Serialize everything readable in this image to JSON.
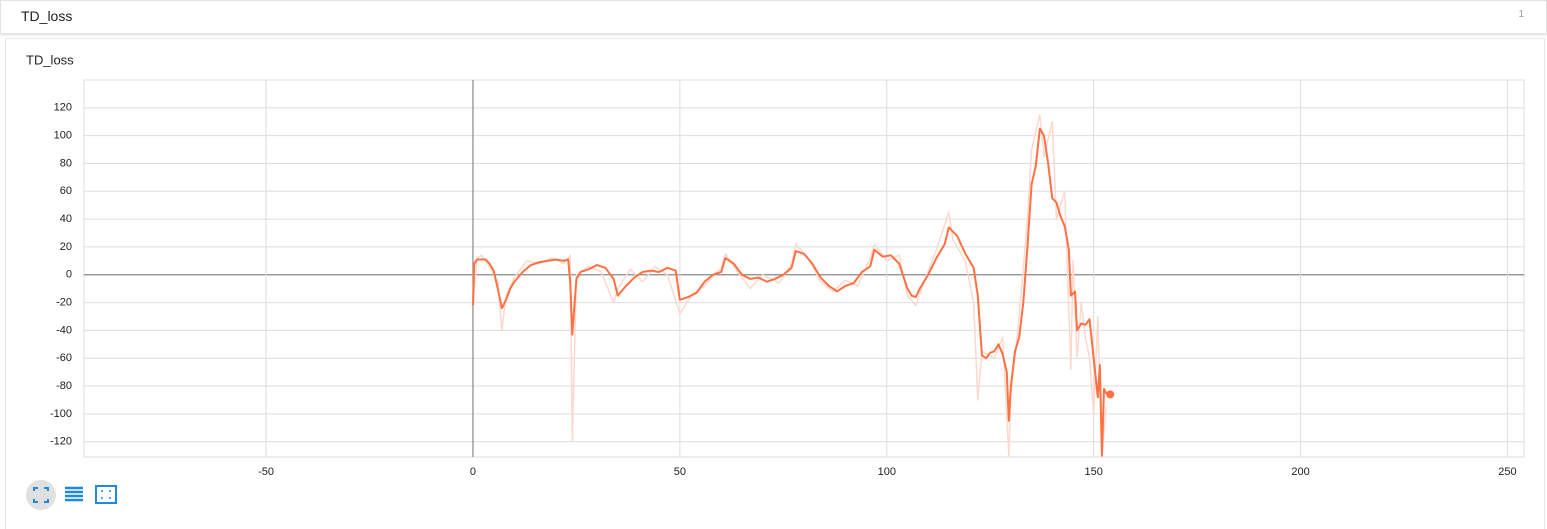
{
  "header": {
    "title": "TD_loss",
    "count": "1"
  },
  "chart_data": {
    "type": "line",
    "title": "TD_loss",
    "xlim": [
      -94,
      254
    ],
    "ylim": [
      -131,
      140
    ],
    "xticks": [
      -50,
      0,
      50,
      100,
      150,
      200,
      250
    ],
    "yticks": [
      -120,
      -100,
      -80,
      -60,
      -40,
      -20,
      0,
      20,
      40,
      60,
      80,
      100,
      120
    ],
    "grid": true,
    "series": [
      {
        "color": "#fcd9ce",
        "x": [
          0,
          1,
          2,
          4,
          6,
          7,
          8,
          10,
          13,
          16,
          19,
          22,
          23.5,
          24,
          25,
          28,
          31,
          34,
          35,
          38,
          41,
          44,
          47,
          50,
          53,
          56,
          60,
          61,
          64,
          67,
          70,
          74,
          77,
          78,
          81,
          84,
          87,
          90,
          93,
          96,
          97,
          100,
          103,
          105,
          107,
          109,
          112,
          115,
          116,
          119,
          121,
          122,
          123,
          126,
          128,
          129.5,
          130,
          132,
          134,
          135,
          137,
          138,
          140,
          141,
          143,
          144.5,
          145,
          146,
          147,
          148,
          149,
          150,
          151,
          152,
          153
        ],
        "values": [
          -22,
          12,
          14,
          6,
          -5,
          -40,
          -15,
          -2,
          10,
          8,
          12,
          8,
          14,
          -120,
          0,
          6,
          2,
          -20,
          -10,
          4,
          -5,
          6,
          0,
          -28,
          -14,
          -8,
          5,
          15,
          2,
          -10,
          0,
          -6,
          8,
          22,
          12,
          -5,
          -12,
          -4,
          -8,
          12,
          22,
          10,
          14,
          -15,
          -22,
          -5,
          18,
          45,
          25,
          10,
          -20,
          -90,
          -55,
          -60,
          -45,
          -130,
          -85,
          -30,
          40,
          90,
          115,
          85,
          110,
          40,
          60,
          -68,
          10,
          -60,
          -20,
          -45,
          -60,
          -100,
          -30,
          -130,
          -95
        ]
      },
      {
        "color": "#ff7043",
        "x": [
          0,
          0.3,
          1,
          3,
          4,
          5,
          6,
          7,
          8,
          9,
          10,
          12,
          14,
          16,
          18,
          20,
          22,
          23,
          23.5,
          24,
          25,
          26,
          28,
          30,
          32,
          34,
          35,
          37,
          39,
          41,
          43,
          45,
          47,
          49,
          50,
          52,
          54,
          56,
          58,
          60,
          61,
          63,
          65,
          67,
          69,
          71,
          73,
          75,
          77,
          78,
          80,
          82,
          84,
          86,
          88,
          90,
          92,
          94,
          96,
          97,
          99,
          101,
          103,
          105,
          106,
          107,
          108,
          110,
          112,
          114,
          115,
          117,
          119,
          121,
          122,
          123,
          124,
          125,
          126,
          127,
          128,
          129,
          129.5,
          130,
          131,
          132,
          133,
          134,
          135,
          136,
          137,
          138,
          139,
          140,
          141,
          142,
          143,
          144,
          144.5,
          145.5,
          146,
          147,
          148,
          149,
          150,
          151,
          151.5,
          152,
          152.5,
          153,
          154
        ],
        "values": [
          -22,
          8,
          11,
          11,
          8,
          3,
          -10,
          -24,
          -18,
          -10,
          -5,
          2,
          7,
          9,
          10,
          11,
          10,
          11,
          -5,
          -43,
          -3,
          2,
          4,
          7,
          5,
          -3,
          -15,
          -8,
          -2,
          2,
          3,
          2,
          5,
          3,
          -18,
          -16,
          -13,
          -5,
          0,
          2,
          12,
          8,
          0,
          -3,
          -2,
          -5,
          -3,
          0,
          5,
          17,
          15,
          8,
          -2,
          -8,
          -12,
          -8,
          -6,
          2,
          6,
          18,
          13,
          14,
          8,
          -10,
          -15,
          -16,
          -10,
          0,
          12,
          22,
          34,
          28,
          15,
          5,
          -15,
          -58,
          -60,
          -56,
          -55,
          -50,
          -57,
          -70,
          -105,
          -80,
          -55,
          -45,
          -20,
          20,
          65,
          78,
          105,
          100,
          80,
          55,
          52,
          42,
          35,
          18,
          -15,
          -12,
          -40,
          -35,
          -36,
          -32,
          -60,
          -88,
          -65,
          -130,
          -82,
          -85,
          -86
        ]
      }
    ]
  }
}
